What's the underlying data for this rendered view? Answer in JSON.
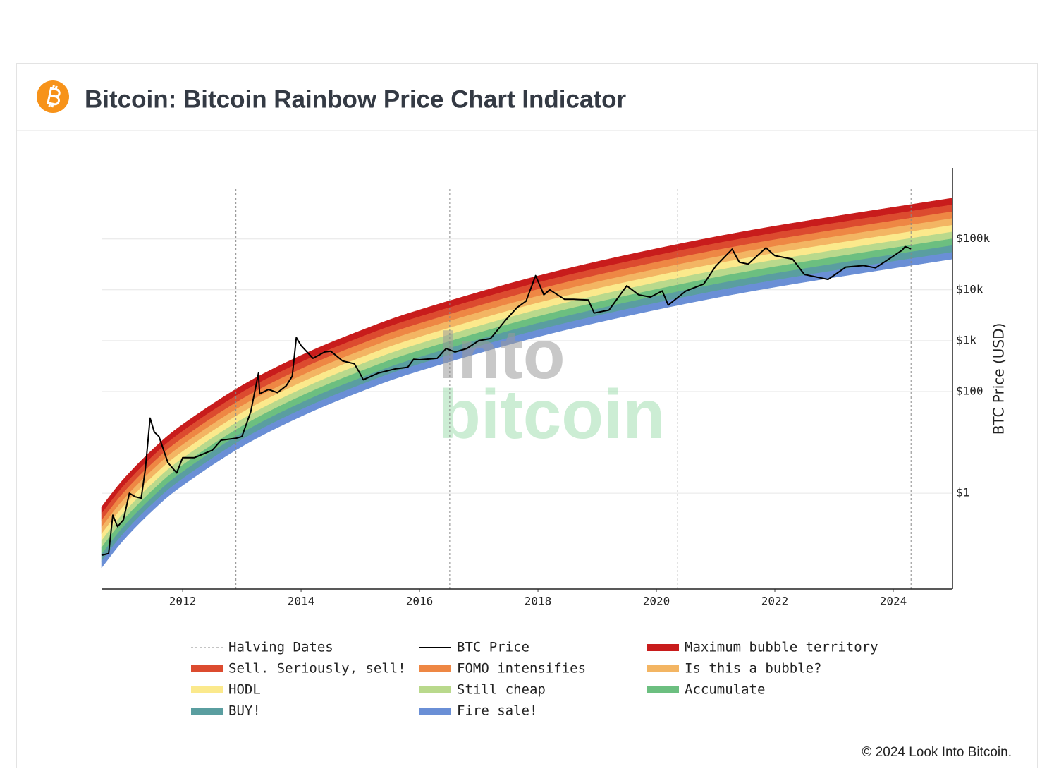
{
  "header": {
    "title": "Bitcoin: Bitcoin Rainbow Price Chart Indicator"
  },
  "chart_data": {
    "type": "rainbow-line",
    "y_label": "BTC Price (USD)",
    "log_y": true,
    "grid": true,
    "xlim": [
      2010.63,
      2025.0
    ],
    "xticks": [
      2012,
      2014,
      2016,
      2018,
      2020,
      2022,
      2024
    ],
    "ylim": [
      0.013,
      2500000
    ],
    "yticks": [
      {
        "value": 1,
        "label": "$1"
      },
      {
        "value": 100,
        "label": "$100"
      },
      {
        "value": 1000,
        "label": "$1k"
      },
      {
        "value": 10000,
        "label": "$10k"
      },
      {
        "value": 100000,
        "label": "$100k"
      }
    ],
    "halvings": {
      "name": "Halving Dates",
      "color": "#888888",
      "x": [
        2012.9,
        2016.51,
        2020.36,
        2024.3
      ]
    },
    "series": [
      {
        "name": "BTC Price",
        "color": "#000000",
        "x": [
          2010.63,
          2010.75,
          2010.82,
          2010.9,
          2011.0,
          2011.1,
          2011.2,
          2011.3,
          2011.37,
          2011.45,
          2011.52,
          2011.6,
          2011.75,
          2011.9,
          2012.0,
          2012.2,
          2012.5,
          2012.65,
          2012.9,
          2013.0,
          2013.15,
          2013.28,
          2013.3,
          2013.45,
          2013.6,
          2013.75,
          2013.85,
          2013.92,
          2014.0,
          2014.1,
          2014.2,
          2014.4,
          2014.5,
          2014.7,
          2014.9,
          2015.0,
          2015.05,
          2015.3,
          2015.6,
          2015.8,
          2015.9,
          2016.0,
          2016.3,
          2016.45,
          2016.6,
          2016.8,
          2017.0,
          2017.2,
          2017.45,
          2017.65,
          2017.8,
          2017.96,
          2018.1,
          2018.2,
          2018.45,
          2018.6,
          2018.85,
          2018.95,
          2019.2,
          2019.5,
          2019.7,
          2019.9,
          2020.1,
          2020.2,
          2020.5,
          2020.8,
          2021.0,
          2021.28,
          2021.4,
          2021.55,
          2021.85,
          2022.0,
          2022.3,
          2022.5,
          2022.9,
          2023.2,
          2023.5,
          2023.7,
          2023.95,
          2024.15,
          2024.2,
          2024.3
        ],
        "values": [
          0.06,
          0.065,
          0.37,
          0.22,
          0.3,
          1.0,
          0.85,
          0.8,
          3.0,
          30,
          16,
          13,
          4,
          2.5,
          5,
          5,
          7,
          11,
          12,
          13,
          40,
          230,
          90,
          110,
          95,
          130,
          200,
          1150,
          800,
          600,
          450,
          600,
          620,
          400,
          350,
          220,
          170,
          230,
          280,
          300,
          430,
          420,
          450,
          700,
          600,
          700,
          1000,
          1100,
          2500,
          4500,
          6000,
          19000,
          8000,
          10000,
          6500,
          6500,
          6300,
          3500,
          4000,
          12000,
          8000,
          7200,
          9500,
          5000,
          9500,
          13000,
          29000,
          63000,
          35000,
          32000,
          67000,
          47000,
          40000,
          20000,
          16000,
          28000,
          30000,
          27000,
          42000,
          60000,
          71000,
          64000
        ]
      }
    ],
    "bands": [
      {
        "name": "Maximum bubble territory",
        "color": "#c81c1c"
      },
      {
        "name": "Sell. Seriously, sell!",
        "color": "#dc4b2f"
      },
      {
        "name": "FOMO intensifies",
        "color": "#ee8744"
      },
      {
        "name": "Is this a bubble?",
        "color": "#f3b563"
      },
      {
        "name": "HODL",
        "color": "#fbe98c"
      },
      {
        "name": "Still cheap",
        "color": "#b9d98c"
      },
      {
        "name": "Accumulate",
        "color": "#6cbf80"
      },
      {
        "name": "BUY!",
        "color": "#5a9ea0"
      },
      {
        "name": "Fire sale!",
        "color": "#6a8fd6"
      }
    ],
    "band_x": [
      2010.63,
      2011.0,
      2011.5,
      2012.0,
      2013.0,
      2014.0,
      2015.0,
      2016.0,
      2018.0,
      2020.0,
      2022.0,
      2025.0
    ],
    "band_edges": [
      [
        0.0339,
        0.119,
        0.466,
        1.42,
        8.28,
        32.4,
        99.3,
        255,
        1190,
        4060,
        11300,
        40300
      ],
      [
        0.0461,
        0.161,
        0.633,
        1.93,
        11.3,
        44.0,
        135,
        346,
        1620,
        5520,
        15400,
        54700
      ],
      [
        0.0626,
        0.219,
        0.86,
        2.63,
        15.3,
        59.9,
        184,
        471,
        2200,
        7510,
        20900,
        74400
      ],
      [
        0.0852,
        0.298,
        1.17,
        3.57,
        20.8,
        81.4,
        249,
        640,
        2990,
        10200,
        28400,
        101000
      ],
      [
        0.116,
        0.405,
        1.59,
        4.86,
        28.3,
        111,
        339,
        870,
        4060,
        13900,
        38600,
        138000
      ],
      [
        0.157,
        0.551,
        2.16,
        6.6,
        38.4,
        150,
        461,
        1180,
        5520,
        18900,
        52500,
        187000
      ],
      [
        0.214,
        0.748,
        2.94,
        8.97,
        52.2,
        204,
        627,
        1610,
        7500,
        25600,
        71300,
        254000
      ],
      [
        0.291,
        1.02,
        3.99,
        12.2,
        71.0,
        278,
        852,
        2180,
        10200,
        34900,
        96900,
        345000
      ],
      [
        0.395,
        1.38,
        5.43,
        16.6,
        96.5,
        378,
        1160,
        2970,
        13900,
        47400,
        132000,
        470000
      ],
      [
        0.537,
        1.88,
        7.38,
        22.5,
        131,
        514,
        1570,
        4040,
        18800,
        64400,
        179000,
        638000
      ]
    ],
    "watermark": [
      "Into",
      "bitcoin"
    ]
  },
  "footer": {
    "text": "© 2024 Look Into Bitcoin."
  }
}
